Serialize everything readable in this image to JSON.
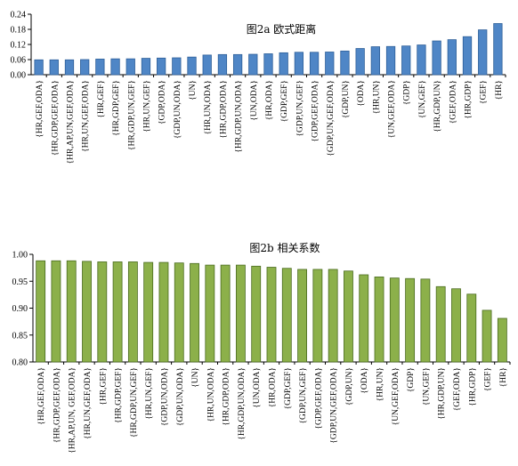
{
  "chart_data": [
    {
      "type": "bar",
      "title": "图2a  欧式距离",
      "ylim": [
        0,
        0.24
      ],
      "yticks": [
        "0.00",
        "0.06",
        "0.12",
        "0.18",
        "0.24"
      ],
      "ytick_values": [
        0,
        0.06,
        0.12,
        0.18,
        0.24
      ],
      "grid": false,
      "colors": {
        "fill": "#4f86c6",
        "stroke": "#2d5f99"
      },
      "categories": [
        "{HR,GEF,ODA}",
        "{HR,GDP,GEF,ODA}",
        "{HR,AP,UN,GEF,ODA}",
        "{HR,UN,GEF,ODA}",
        "{HR,GEF}",
        "{HR,GDP,GEF}",
        "{HR,GDP,UN,GEF}",
        "{HR,UN,GEF}",
        "{GDP,ODA}",
        "{GDP,UN,ODA}",
        "{UN}",
        "{HR,UN,ODA}",
        "{HR,GDP,ODA}",
        "{HR,GDP,UN,ODA}",
        "{UN,ODA}",
        "{HR,ODA}",
        "{GDP,GEF}",
        "{GDP,UN,GEF}",
        "{GDP,GEF,ODA}",
        "{GDP,UN,GEF,ODA}",
        "{GDP,UN}",
        "{ODA}",
        "{HR,UN}",
        "{UN,GEF,ODA}",
        "{GDP}",
        "{UN,GEF}",
        "{HR,GDP,UN}",
        "{GEF,ODA}",
        "{HR,GDP}",
        "{GEF}",
        "{HR}"
      ],
      "values": [
        0.059,
        0.059,
        0.059,
        0.06,
        0.062,
        0.063,
        0.063,
        0.065,
        0.066,
        0.067,
        0.07,
        0.078,
        0.08,
        0.08,
        0.081,
        0.083,
        0.087,
        0.089,
        0.089,
        0.09,
        0.094,
        0.104,
        0.111,
        0.112,
        0.114,
        0.118,
        0.134,
        0.139,
        0.151,
        0.178,
        0.203
      ]
    },
    {
      "type": "bar",
      "title": "图2b  相关系数",
      "ylim": [
        0.8,
        1.0
      ],
      "yticks": [
        "0.80",
        "0.85",
        "0.90",
        "0.95",
        "1.00"
      ],
      "ytick_values": [
        0.8,
        0.85,
        0.9,
        0.95,
        1.0
      ],
      "grid": false,
      "colors": {
        "fill": "#8cb04a",
        "stroke": "#4a6b1f"
      },
      "categories": [
        "{HR,GEF,ODA}",
        "{HR,GDP,GEF,ODA}",
        "{HR,AP,UN, GEF,ODA}",
        "{HR,UN,GEF,ODA}",
        "{HR,GEF}",
        "{HR,GDP,GEF}",
        "{HR,GDP,UN,GEF}",
        "{HR,UN,GEF}",
        "{GDP,UN,ODA}",
        "{GDP,UN,ODA}",
        "{UN}",
        "{HR,UN,ODA}",
        "{HR,GDP,ODA}",
        "{HR,GDP,UN,ODA}",
        "{UN,ODA}",
        "{HR,ODA}",
        "{GDP,GEF}",
        "{GDP,UN,GEF}",
        "{GDP,GEF,ODA}",
        "{GDP,UN,GEF,ODA}",
        "{GDP,UN}",
        "{ODA}",
        "{HR,UN}",
        "{UN,GEF,ODA}",
        "{GDP}",
        "{UN,GEF}",
        "{HR,GDP,UN}",
        "{GEF,ODA}",
        "{HR,GDP}",
        "{GEF}",
        "{HR}"
      ],
      "values": [
        0.988,
        0.988,
        0.988,
        0.987,
        0.986,
        0.986,
        0.986,
        0.985,
        0.985,
        0.984,
        0.983,
        0.98,
        0.98,
        0.98,
        0.978,
        0.976,
        0.974,
        0.972,
        0.972,
        0.972,
        0.969,
        0.962,
        0.958,
        0.956,
        0.955,
        0.954,
        0.94,
        0.936,
        0.926,
        0.896,
        0.881
      ]
    }
  ]
}
